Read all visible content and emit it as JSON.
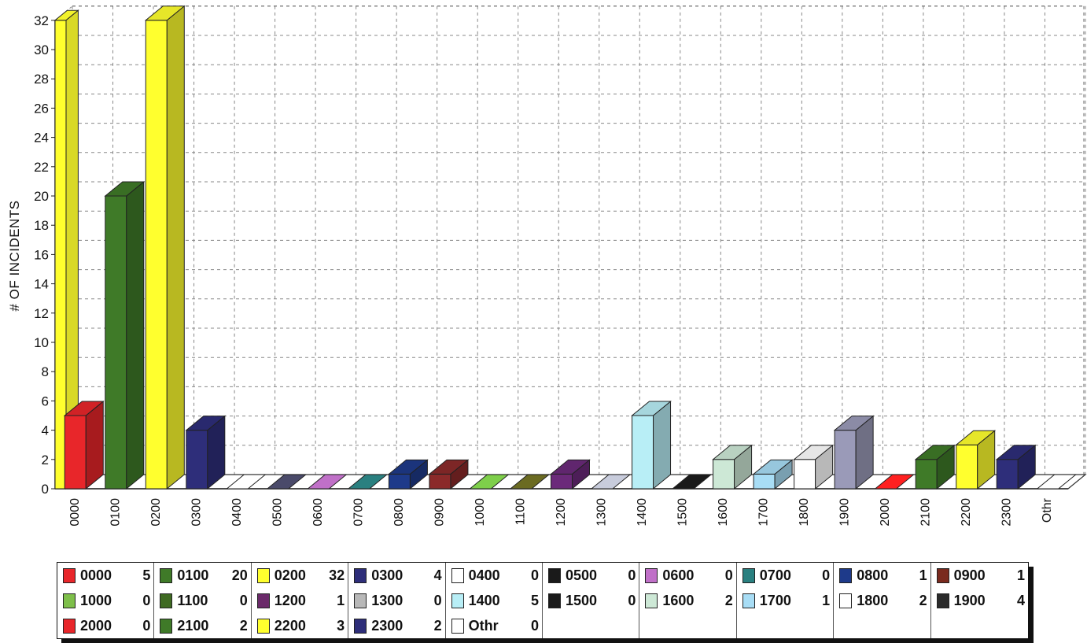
{
  "chart_data": {
    "type": "bar",
    "title": "",
    "xlabel": "",
    "ylabel": "# OF INCIDENTS",
    "ylim": [
      0,
      32
    ],
    "yticks": [
      0,
      2,
      4,
      6,
      8,
      10,
      12,
      14,
      16,
      18,
      20,
      22,
      24,
      26,
      28,
      30,
      32
    ],
    "grid": true,
    "legend_position": "bottom",
    "categories": [
      "0000",
      "0100",
      "0200",
      "0300",
      "0400",
      "0500",
      "0600",
      "0700",
      "0800",
      "0900",
      "1000",
      "1100",
      "1200",
      "1300",
      "1400",
      "1500",
      "1600",
      "1700",
      "1800",
      "1900",
      "2000",
      "2100",
      "2200",
      "2300",
      "Othr"
    ],
    "values": [
      5,
      20,
      32,
      4,
      0,
      0,
      0,
      0,
      1,
      1,
      0,
      0,
      1,
      0,
      5,
      0,
      2,
      1,
      2,
      4,
      0,
      2,
      3,
      2,
      0
    ],
    "colors": [
      "#e8262a",
      "#3f7a28",
      "#ffff2e",
      "#2e2e7a",
      "#ffffff",
      "#4a4a6a",
      "#c070c8",
      "#2a8080",
      "#1e3a8a",
      "#8b2a2a",
      "#7ecf4a",
      "#6b6b22",
      "#6b2a7a",
      "#c8ccdc",
      "#b8eef6",
      "#1a1a1a",
      "#cde8d6",
      "#a8ddf5",
      "#ffffff",
      "#9a9ab8",
      "#ff2020",
      "#3f7a28",
      "#ffff2e",
      "#2e2e7a",
      "#ffffff"
    ],
    "background_bar": {
      "value": 32,
      "color": "#ffff2e"
    }
  },
  "legend": [
    [
      {
        "name": "0000",
        "value": "5",
        "color": "#e8262a"
      },
      {
        "name": "0100",
        "value": "20",
        "color": "#3f7a28"
      },
      {
        "name": "0200",
        "value": "32",
        "color": "#ffff2e"
      },
      {
        "name": "0300",
        "value": "4",
        "color": "#2e2e7a"
      },
      {
        "name": "0400",
        "value": "0",
        "color": "#ffffff"
      },
      {
        "name": "0500",
        "value": "0",
        "color": "#1a1a1a"
      },
      {
        "name": "0600",
        "value": "0",
        "color": "#c070c8"
      },
      {
        "name": "0700",
        "value": "0",
        "color": "#2a8080"
      },
      {
        "name": "0800",
        "value": "1",
        "color": "#1e3a8a"
      },
      {
        "name": "0900",
        "value": "1",
        "color": "#7a2a1e"
      }
    ],
    [
      {
        "name": "1000",
        "value": "0",
        "color": "#7ebf4a"
      },
      {
        "name": "1100",
        "value": "0",
        "color": "#3f6a22"
      },
      {
        "name": "1200",
        "value": "1",
        "color": "#6b2a6a"
      },
      {
        "name": "1300",
        "value": "0",
        "color": "#b8b8b8"
      },
      {
        "name": "1400",
        "value": "5",
        "color": "#b8eef6"
      },
      {
        "name": "1500",
        "value": "0",
        "color": "#1a1a1a"
      },
      {
        "name": "1600",
        "value": "2",
        "color": "#cde8d6"
      },
      {
        "name": "1700",
        "value": "1",
        "color": "#a8ddf5"
      },
      {
        "name": "1800",
        "value": "2",
        "color": "#ffffff"
      },
      {
        "name": "1900",
        "value": "4",
        "color": "#2a2a2a"
      }
    ],
    [
      {
        "name": "2000",
        "value": "0",
        "color": "#e8262a"
      },
      {
        "name": "2100",
        "value": "2",
        "color": "#3f7a28"
      },
      {
        "name": "2200",
        "value": "3",
        "color": "#ffff2e"
      },
      {
        "name": "2300",
        "value": "2",
        "color": "#2e2e7a"
      },
      {
        "name": "Othr",
        "value": "0",
        "color": "#ffffff"
      }
    ]
  ]
}
